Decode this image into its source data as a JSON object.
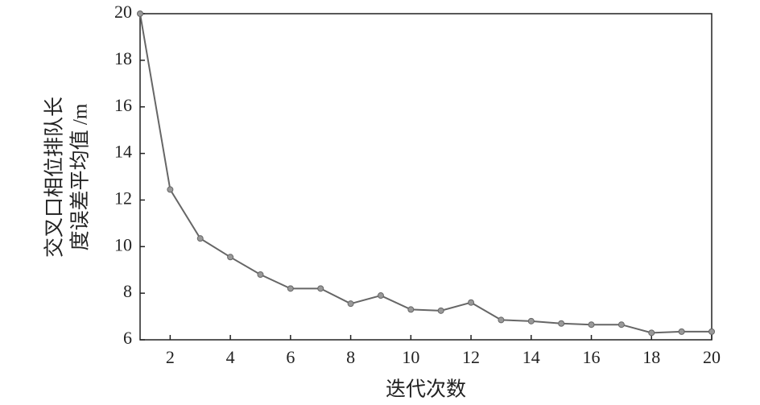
{
  "chart_data": {
    "type": "line",
    "x_label": "迭代次数",
    "y_label": [
      "交叉口相位排队长",
      "度误差平均值 /m"
    ],
    "x": [
      1,
      2,
      3,
      4,
      5,
      6,
      7,
      8,
      9,
      10,
      11,
      12,
      13,
      14,
      15,
      16,
      17,
      18,
      19,
      20
    ],
    "series": [
      {
        "color": "#666666",
        "values": [
          20,
          12.45,
          10.35,
          9.55,
          8.8,
          8.2,
          8.2,
          7.55,
          7.9,
          7.3,
          7.25,
          7.6,
          6.85,
          6.8,
          6.7,
          6.65,
          6.65,
          6.3,
          6.35,
          6.35
        ]
      }
    ],
    "xlim": [
      1,
      20
    ],
    "xticks": [
      2,
      4,
      6,
      8,
      10,
      12,
      14,
      16,
      18,
      20
    ],
    "ylim": [
      6,
      20
    ],
    "yticks": [
      6,
      8,
      10,
      12,
      14,
      16,
      18,
      20
    ]
  }
}
